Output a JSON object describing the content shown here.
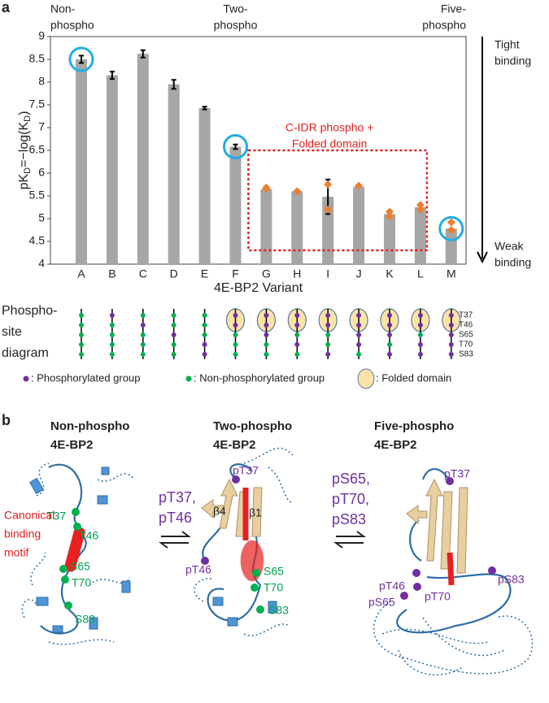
{
  "panel_labels": [
    "a",
    "b"
  ],
  "chart_data": {
    "type": "bar",
    "categories": [
      "A",
      "B",
      "C",
      "D",
      "E",
      "F",
      "G",
      "H",
      "I",
      "J",
      "K",
      "L",
      "M"
    ],
    "values": [
      8.5,
      8.15,
      8.62,
      7.95,
      7.43,
      6.58,
      5.65,
      5.6,
      5.48,
      5.7,
      5.1,
      5.25,
      4.78
    ],
    "errors": [
      0.08,
      0.08,
      0.08,
      0.1,
      0.03,
      0.05,
      null,
      null,
      0.38,
      null,
      null,
      null,
      null
    ],
    "color": "#a6a6a6",
    "replicates": {
      "color": "#ed7d31",
      "values": [
        null,
        null,
        null,
        null,
        null,
        null,
        [
          5.68,
          5.65
        ],
        [
          5.6
        ],
        [
          5.75,
          5.2
        ],
        [
          5.72
        ],
        [
          5.15,
          5.05
        ],
        [
          5.3,
          5.2
        ],
        [
          4.92,
          4.75
        ]
      ]
    },
    "ylim": [
      4,
      9
    ],
    "yticks": [
      4,
      4.5,
      5,
      5.5,
      6,
      6.5,
      7,
      7.5,
      8,
      8.5,
      9
    ],
    "xlabel": "4E-BP2 Variant",
    "ylabel": [
      "pK",
      "D",
      "=−log(K",
      "D",
      ")"
    ],
    "highlighted": [
      "A",
      "F",
      "M"
    ],
    "group_labels": [
      [
        "Non-",
        "phospho"
      ],
      [
        "Two-",
        "phospho"
      ],
      [
        "Five-",
        "phospho"
      ]
    ],
    "box_label": [
      "C-IDR phospho +",
      "Folded domain"
    ],
    "binding_labels": {
      "tight": [
        "Tight",
        "binding"
      ],
      "weak": [
        "Weak",
        "binding"
      ]
    }
  },
  "phosphosite": {
    "title": [
      "Phospho-",
      "site",
      "diagram"
    ],
    "sites": [
      "T37",
      "T46",
      "S65",
      "T70",
      "S83"
    ],
    "phosphorylated": [
      [
        false,
        false,
        false,
        false,
        false
      ],
      [
        true,
        false,
        false,
        false,
        false
      ],
      [
        false,
        true,
        false,
        false,
        false
      ],
      [
        false,
        false,
        true,
        false,
        false
      ],
      [
        false,
        false,
        false,
        true,
        true
      ],
      [
        true,
        true,
        false,
        false,
        false
      ],
      [
        true,
        true,
        true,
        false,
        false
      ],
      [
        true,
        true,
        false,
        true,
        false
      ],
      [
        true,
        true,
        false,
        false,
        true
      ],
      [
        true,
        true,
        true,
        true,
        false
      ],
      [
        true,
        true,
        true,
        false,
        true
      ],
      [
        true,
        true,
        false,
        true,
        true
      ],
      [
        true,
        true,
        true,
        true,
        true
      ]
    ],
    "folded": [
      false,
      false,
      false,
      false,
      false,
      true,
      true,
      true,
      true,
      true,
      true,
      true,
      true
    ]
  },
  "legend": [
    ": Phosphorylated group",
    ": Non-phosphorylated group",
    ": Folded domain"
  ],
  "panel_b": {
    "titles": [
      [
        "Non-phospho",
        "4E-BP2"
      ],
      [
        "Two-phospho",
        "4E-BP2"
      ],
      [
        "Five-phospho",
        "4E-BP2"
      ]
    ],
    "transitions": [
      [
        "pT37,",
        "pT46"
      ],
      [
        "pS65,",
        "pT70,",
        "pS83"
      ]
    ],
    "non_phospho": {
      "sites": [
        "T37",
        "T46",
        "S65",
        "T70",
        "S83"
      ],
      "motif": [
        "Canonical",
        "binding",
        "motif"
      ]
    },
    "two_phospho": {
      "sites": [
        "pT37",
        "pT46"
      ],
      "strands": [
        "β4",
        "β1"
      ],
      "free": [
        "S65",
        "T70",
        "S83"
      ]
    },
    "five_phospho": {
      "sites": [
        "pT37",
        "pT46",
        "pS65",
        "pT70",
        "pS83"
      ]
    }
  }
}
